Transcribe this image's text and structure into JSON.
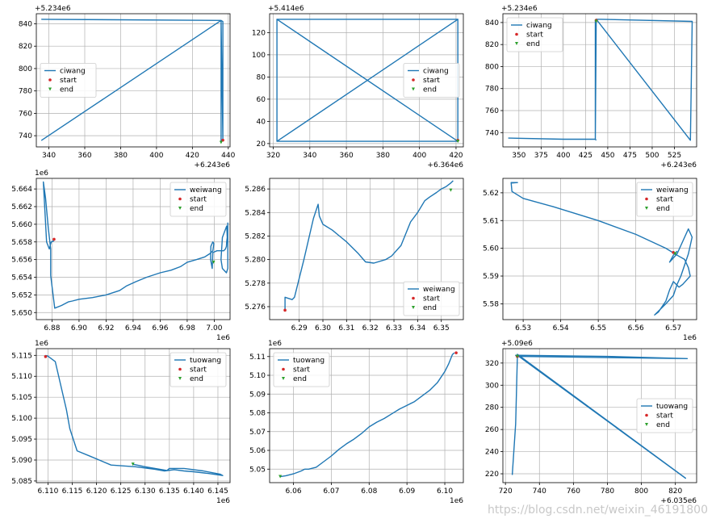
{
  "figure": {
    "watermark": "https://blog.csdn.net/weixin_46191800"
  },
  "chart_data": [
    {
      "type": "line",
      "xlim": [
        333,
        441
      ],
      "ylim": [
        730,
        849
      ],
      "xticks": [
        340,
        360,
        380,
        400,
        420,
        440
      ],
      "yticks": [
        740,
        760,
        780,
        800,
        820,
        840
      ],
      "x_offset_label": "+6.243e6",
      "y_offset_label": "+5.234e6",
      "grid": true,
      "legend_placement": "center-left",
      "legend": [
        "ciwang",
        "start",
        "end"
      ],
      "series": [
        {
          "name": "ciwang",
          "x": [
            336,
            436,
            336,
            436,
            336,
            436,
            436,
            437,
            437,
            436,
            436
          ],
          "y": [
            844,
            843,
            844,
            843,
            736,
            843,
            843,
            842,
            737,
            842,
            735
          ]
        }
      ],
      "start": [
        437,
        736
      ],
      "end": [
        436,
        734
      ]
    },
    {
      "type": "line",
      "xlim": [
        318,
        424
      ],
      "ylim": [
        17,
        137
      ],
      "xticks": [
        320,
        340,
        360,
        380,
        400,
        420
      ],
      "yticks": [
        20,
        40,
        60,
        80,
        100,
        120
      ],
      "x_offset_label": "+6.364e6",
      "y_offset_label": "+5.414e6",
      "grid": true,
      "legend_placement": "center-right",
      "legend": [
        "ciwang",
        "start",
        "end"
      ],
      "series": [
        {
          "name": "ciwang",
          "x": [
            322,
            421,
            421,
            322,
            322,
            421,
            322,
            421,
            421,
            322,
            322,
            421,
            322,
            421
          ],
          "y": [
            132,
            132,
            22,
            22,
            132,
            132,
            22,
            132,
            22,
            132,
            22,
            22,
            132,
            132
          ]
        }
      ],
      "start": [
        421,
        23
      ],
      "end": [
        421,
        22
      ]
    },
    {
      "type": "line",
      "xlim": [
        332,
        550
      ],
      "ylim": [
        727,
        848
      ],
      "xticks": [
        350,
        375,
        400,
        425,
        450,
        475,
        500,
        525
      ],
      "yticks": [
        740,
        760,
        780,
        800,
        820,
        840
      ],
      "x_offset_label": "+6.243e6",
      "y_offset_label": "+5.234e6",
      "grid": true,
      "legend_placement": "top-left",
      "legend": [
        "ciwang",
        "start",
        "end"
      ],
      "series": [
        {
          "name": "ciwang",
          "x": [
            338,
            400,
            436,
            436,
            437,
            545,
            543,
            437,
            437,
            436,
            437
          ],
          "y": [
            735,
            734,
            734,
            842,
            843,
            841,
            733,
            843,
            842,
            734,
            733
          ]
        }
      ],
      "start": [
        437,
        842
      ],
      "end": [
        437,
        841
      ]
    },
    {
      "type": "line",
      "xlim": [
        6.8684,
        7.0117
      ],
      "ylim": [
        5.6492,
        5.6652
      ],
      "xticks": [
        6.88,
        6.9,
        6.92,
        6.94,
        6.96,
        6.98,
        7.0
      ],
      "yticks": [
        5.65,
        5.652,
        5.654,
        5.656,
        5.658,
        5.66,
        5.662,
        5.664
      ],
      "tick_labels_x": [
        "6.88",
        "6.90",
        "6.92",
        "6.94",
        "6.96",
        "6.98",
        "7.00"
      ],
      "tick_labels_y": [
        "5.650",
        "5.652",
        "5.654",
        "5.656",
        "5.658",
        "5.660",
        "5.662",
        "5.664"
      ],
      "x_offset_label": "1e6",
      "y_offset_label": "1e6",
      "grid": true,
      "legend_placement": "top-right",
      "legend": [
        "weiwang",
        "start",
        "end"
      ],
      "series": [
        {
          "name": "weiwang",
          "x": [
            6.8814,
            6.881,
            6.8795,
            6.879,
            6.878,
            6.876,
            6.8736,
            6.8752,
            6.8773,
            6.879,
            6.879,
            6.88,
            6.882,
            6.887,
            6.892,
            6.895,
            6.9,
            6.91,
            6.92,
            6.93,
            6.935,
            6.942,
            6.95,
            6.96,
            6.968,
            6.975,
            6.98,
            6.987,
            6.993,
            6.997,
            6.999,
            6.9997,
            6.999,
            6.9975,
            6.9973,
            6.9985,
            6.999,
            7.002,
            7.005,
            7.007,
            7.0083,
            7.009,
            7.0092,
            7.0096,
            7.0095,
            7.0092,
            7.006,
            7.005,
            7.006,
            7.009,
            7.01,
            7.01
          ],
          "y": [
            5.6582,
            5.6581,
            5.658,
            5.6578,
            5.6572,
            5.658,
            5.6648,
            5.663,
            5.6595,
            5.6572,
            5.6542,
            5.653,
            5.6505,
            5.6508,
            5.6512,
            5.6513,
            5.6515,
            5.6517,
            5.652,
            5.6525,
            5.653,
            5.6535,
            5.654,
            5.6545,
            5.6548,
            5.6552,
            5.6557,
            5.656,
            5.6563,
            5.6567,
            5.657,
            5.6578,
            5.658,
            5.6575,
            5.656,
            5.655,
            5.6568,
            5.657,
            5.657,
            5.657,
            5.6572,
            5.6575,
            5.658,
            5.6585,
            5.659,
            5.6598,
            5.6585,
            5.656,
            5.655,
            5.6545,
            5.655,
            5.6602
          ]
        }
      ],
      "start": [
        6.8815,
        5.6583
      ],
      "end": [
        6.9995,
        5.6557
      ]
    },
    {
      "type": "line",
      "xlim": [
        6.2775,
        6.3593
      ],
      "ylim": [
        5.2749,
        5.2869
      ],
      "xticks": [
        6.29,
        6.3,
        6.31,
        6.32,
        6.33,
        6.34,
        6.35
      ],
      "yticks": [
        5.276,
        5.278,
        5.28,
        5.282,
        5.284,
        5.286
      ],
      "tick_labels_x": [
        "6.29",
        "6.30",
        "6.31",
        "6.32",
        "6.33",
        "6.34",
        "6.35"
      ],
      "tick_labels_y": [
        "5.276",
        "5.278",
        "5.280",
        "5.282",
        "5.284",
        "5.286"
      ],
      "x_offset_label": "",
      "y_offset_label": "",
      "grid": true,
      "legend_placement": "bottom-right",
      "legend": [
        "weiwang",
        "start",
        "end"
      ],
      "series": [
        {
          "name": "weiwang",
          "x": [
            6.284,
            6.284,
            6.287,
            6.288,
            6.292,
            6.296,
            6.298,
            6.2985,
            6.3,
            6.304,
            6.307,
            6.31,
            6.315,
            6.318,
            6.3215,
            6.3265,
            6.329,
            6.333,
            6.337,
            6.34,
            6.343,
            6.345,
            6.348,
            6.35,
            6.352,
            6.354,
            6.355
          ],
          "y": [
            5.2757,
            5.2768,
            5.2766,
            5.2768,
            5.28,
            5.2835,
            5.2847,
            5.2837,
            5.283,
            5.2825,
            5.282,
            5.2815,
            5.2805,
            5.2798,
            5.2797,
            5.28,
            5.2803,
            5.2812,
            5.2832,
            5.284,
            5.285,
            5.2853,
            5.2857,
            5.286,
            5.2862,
            5.2865,
            5.2867
          ]
        }
      ],
      "start": [
        6.284,
        5.2757
      ],
      "end": [
        6.354,
        5.2859
      ]
    },
    {
      "type": "line",
      "xlim": [
        6.5246,
        6.5762
      ],
      "ylim": [
        5.5743,
        5.6252
      ],
      "xticks": [
        6.53,
        6.54,
        6.55,
        6.56,
        6.57
      ],
      "yticks": [
        5.58,
        5.59,
        5.6,
        5.61,
        5.62
      ],
      "tick_labels_x": [
        "6.53",
        "6.54",
        "6.55",
        "6.56",
        "6.57"
      ],
      "tick_labels_y": [
        "5.58",
        "5.59",
        "5.60",
        "5.61",
        "5.62"
      ],
      "x_offset_label": "1e6",
      "y_offset_label": "",
      "grid": true,
      "legend_placement": "top-right",
      "legend": [
        "weiwang",
        "start",
        "end"
      ],
      "series": [
        {
          "name": "weiwang",
          "x": [
            6.527,
            6.5285,
            6.5268,
            6.527,
            6.53,
            6.538,
            6.55,
            6.56,
            6.568,
            6.571,
            6.573,
            6.574,
            6.5745,
            6.5725,
            6.5715,
            6.57,
            6.569,
            6.568,
            6.566,
            6.565,
            6.568,
            6.57,
            6.571,
            6.572,
            6.574,
            6.575,
            6.574,
            6.571,
            6.569,
            6.57,
            6.571
          ],
          "y": [
            5.6235,
            5.6237,
            5.6237,
            5.6205,
            5.618,
            5.615,
            5.61,
            5.605,
            5.6,
            5.5975,
            5.596,
            5.593,
            5.59,
            5.587,
            5.586,
            5.588,
            5.585,
            5.581,
            5.577,
            5.576,
            5.58,
            5.583,
            5.587,
            5.59,
            5.598,
            5.604,
            5.607,
            5.598,
            5.595,
            5.5975,
            5.599
          ]
        }
      ],
      "start": [
        6.57,
        5.5985
      ],
      "end": [
        6.5705,
        5.598
      ]
    },
    {
      "type": "line",
      "xlim": [
        6.1076,
        6.1475
      ],
      "ylim": [
        5.0846,
        5.1166
      ],
      "xticks": [
        6.11,
        6.115,
        6.12,
        6.125,
        6.13,
        6.135,
        6.14,
        6.145
      ],
      "yticks": [
        5.085,
        5.09,
        5.095,
        5.1,
        5.105,
        5.11,
        5.115
      ],
      "tick_labels_x": [
        "6.110",
        "6.115",
        "6.120",
        "6.125",
        "6.130",
        "6.135",
        "6.140",
        "6.145"
      ],
      "tick_labels_y": [
        "5.085",
        "5.090",
        "5.095",
        "5.100",
        "5.105",
        "5.110",
        "5.115"
      ],
      "x_offset_label": "1e6",
      "y_offset_label": "1e6",
      "grid": true,
      "legend_placement": "top-right",
      "legend": [
        "tuowang",
        "start",
        "end"
      ],
      "series": [
        {
          "name": "tuowang",
          "x": [
            6.1095,
            6.11,
            6.1115,
            6.113,
            6.1138,
            6.1145,
            6.116,
            6.1185,
            6.123,
            6.128,
            6.132,
            6.134,
            6.136,
            6.138,
            6.14,
            6.143,
            6.146,
            6.1455,
            6.142,
            6.138,
            6.135,
            6.1345,
            6.13,
            6.1275
          ],
          "y": [
            5.115,
            5.1148,
            5.1135,
            5.106,
            5.102,
            5.0975,
            5.0922,
            5.091,
            5.0888,
            5.0884,
            5.0878,
            5.0874,
            5.0877,
            5.0874,
            5.0872,
            5.0868,
            5.0863,
            5.0866,
            5.0874,
            5.088,
            5.088,
            5.0875,
            5.0884,
            5.089
          ]
        }
      ],
      "start": [
        6.1095,
        5.1147
      ],
      "end": [
        6.1275,
        5.089
      ]
    },
    {
      "type": "line",
      "xlim": [
        6.0537,
        6.1049
      ],
      "ylim": [
        5.0428,
        5.1142
      ],
      "xticks": [
        6.06,
        6.07,
        6.08,
        6.09,
        6.1
      ],
      "yticks": [
        5.05,
        5.06,
        5.07,
        5.08,
        5.09,
        5.1,
        5.11
      ],
      "tick_labels_x": [
        "6.06",
        "6.07",
        "6.08",
        "6.09",
        "6.10"
      ],
      "tick_labels_y": [
        "5.05",
        "5.06",
        "5.07",
        "5.08",
        "5.09",
        "5.10",
        "5.11"
      ],
      "x_offset_label": "1e6",
      "y_offset_label": "1e6",
      "grid": true,
      "legend_placement": "top-left",
      "legend": [
        "tuowang",
        "start",
        "end"
      ],
      "series": [
        {
          "name": "tuowang",
          "x": [
            6.0565,
            6.058,
            6.06,
            6.062,
            6.063,
            6.064,
            6.066,
            6.068,
            6.07,
            6.072,
            6.074,
            6.076,
            6.078,
            6.08,
            6.082,
            6.084,
            6.086,
            6.088,
            6.09,
            6.092,
            6.094,
            6.096,
            6.098,
            6.1,
            6.101,
            6.102,
            6.1025
          ],
          "y": [
            5.046,
            5.0465,
            5.0475,
            5.049,
            5.05,
            5.05,
            5.051,
            5.054,
            5.057,
            5.0605,
            5.0635,
            5.066,
            5.069,
            5.0725,
            5.075,
            5.077,
            5.0795,
            5.082,
            5.084,
            5.086,
            5.089,
            5.092,
            5.096,
            5.102,
            5.106,
            5.111,
            5.112
          ]
        }
      ],
      "start": [
        6.103,
        5.112
      ],
      "end": [
        6.0565,
        5.046
      ]
    },
    {
      "type": "line",
      "xlim": [
        718.5,
        832.5
      ],
      "ylim": [
        212,
        333
      ],
      "xticks": [
        720,
        740,
        760,
        780,
        800,
        820
      ],
      "yticks": [
        220,
        240,
        260,
        280,
        300,
        320
      ],
      "x_offset_label": "+6.035e6",
      "y_offset_label": "+5.09e6",
      "grid": true,
      "legend_placement": "center-right",
      "legend": [
        "tuowang",
        "start",
        "end"
      ],
      "series": [
        {
          "name": "tuowang",
          "x": [
            724,
            726,
            727,
            726,
            728,
            780,
            827,
            727,
            727,
            826,
            727
          ],
          "y": [
            219,
            265,
            325,
            327,
            327,
            326,
            324,
            326,
            328,
            216,
            327
          ]
        }
      ],
      "start": [
        727,
        326
      ],
      "end": [
        727,
        326
      ]
    }
  ]
}
